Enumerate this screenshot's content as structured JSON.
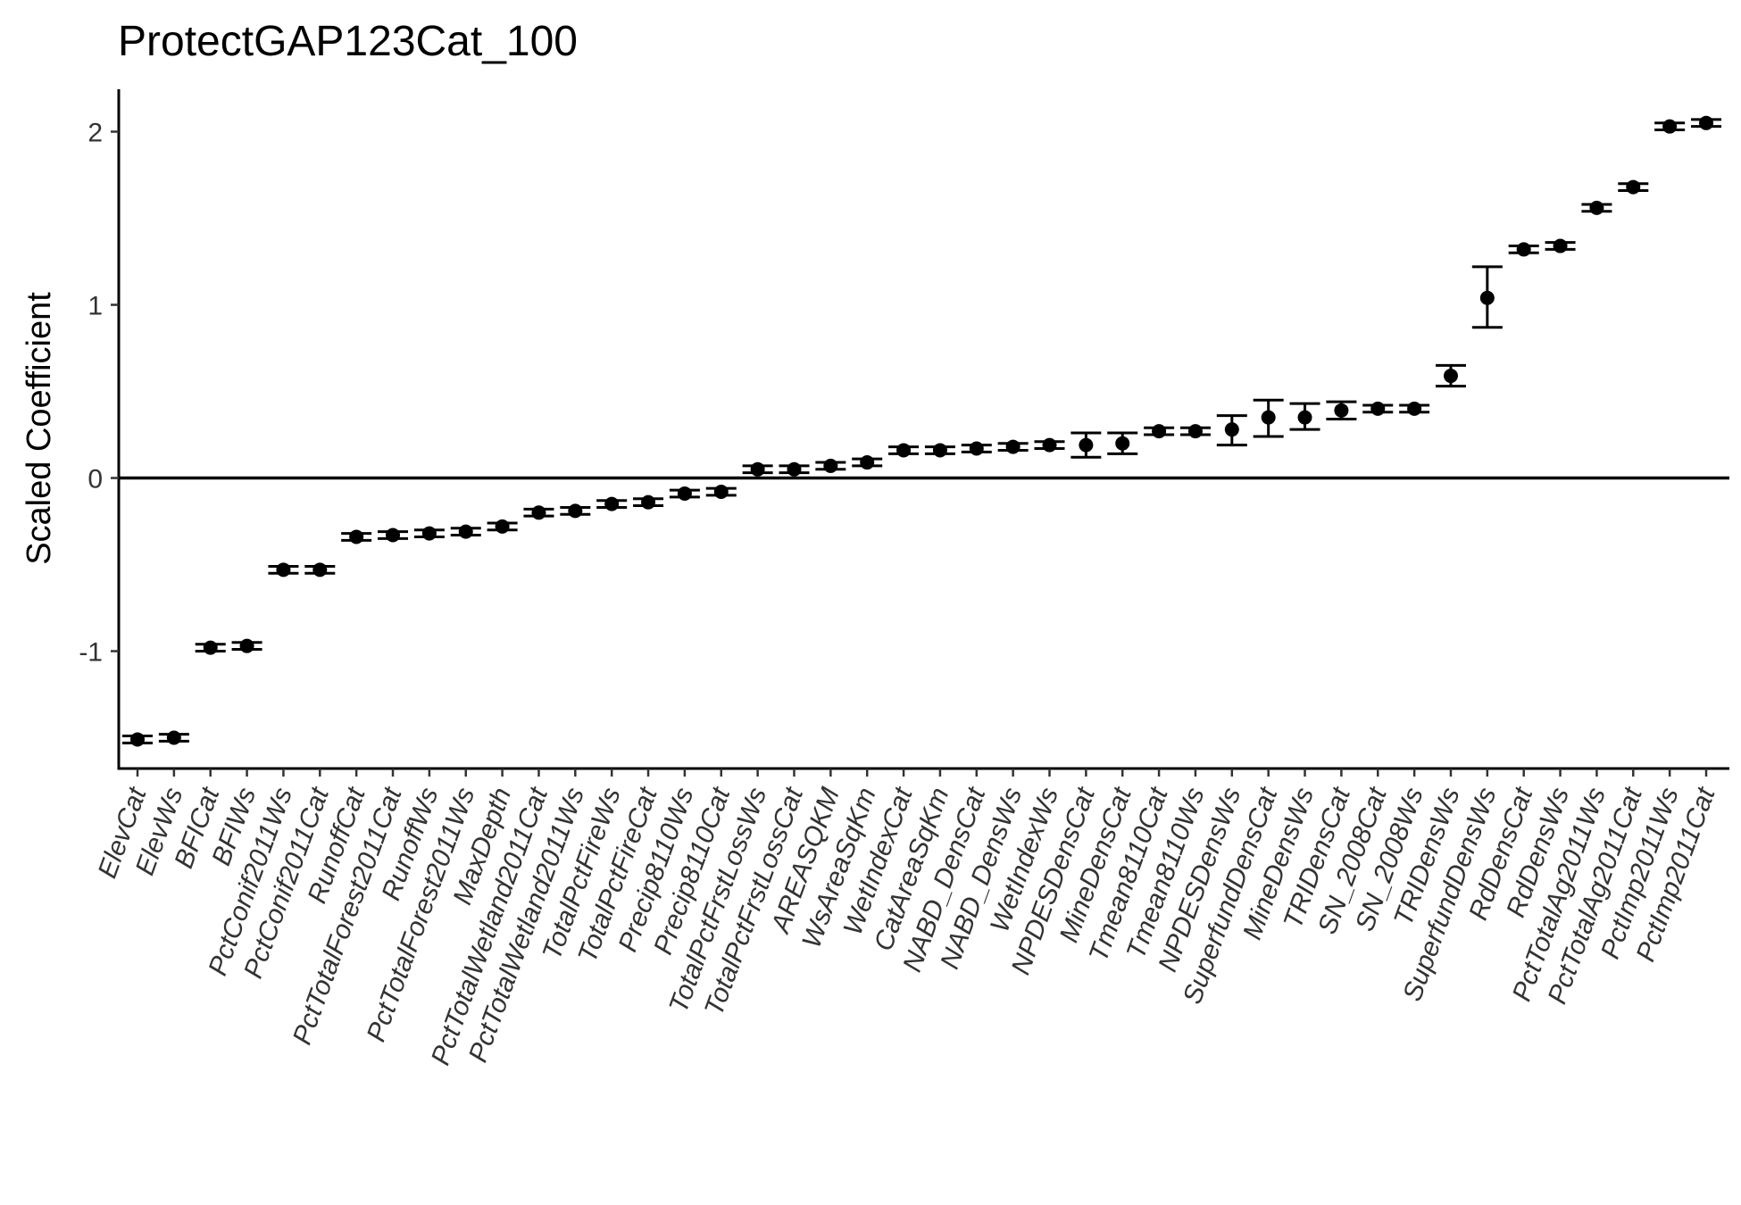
{
  "chart_data": {
    "type": "scatter",
    "title": "ProtectGAP123Cat_100",
    "xlabel": "",
    "ylabel": "Scaled Coefficient",
    "ylim": [
      -1.68,
      2.25
    ],
    "yticks": [
      -1,
      0,
      1,
      2
    ],
    "ytick_labels": [
      "-1",
      "0",
      "1",
      "2"
    ],
    "reference_line_y": 0,
    "grid": false,
    "legend": "none",
    "point_color": "#000000",
    "categories": [
      "ElevCat",
      "ElevWs",
      "BFICat",
      "BFIWs",
      "PctConif2011Ws",
      "PctConif2011Cat",
      "RunoffCat",
      "PctTotalForest2011Cat",
      "RunoffWs",
      "PctTotalForest2011Ws",
      "MaxDepth",
      "PctTotalWetland2011Cat",
      "PctTotalWetland2011Ws",
      "TotalPctFireWs",
      "TotalPctFireCat",
      "Precip8110Ws",
      "Precip8110Cat",
      "TotalPctFrstLossWs",
      "TotalPctFrstLossCat",
      "AREASQKM",
      "WsAreaSqKm",
      "WetIndexCat",
      "CatAreaSqKm",
      "NABD_DensCat",
      "NABD_DensWs",
      "WetIndexWs",
      "NPDESDensCat",
      "MineDensCat",
      "Tmean8110Cat",
      "Tmean8110Ws",
      "NPDESDensWs",
      "SuperfundDensCat",
      "MineDensWs",
      "TRIDensCat",
      "SN_2008Cat",
      "SN_2008Ws",
      "TRIDensWs",
      "SuperfundDensWs",
      "RdDensCat",
      "RdDensWs",
      "PctTotalAg2011Ws",
      "PctTotalAg2011Cat",
      "PctImp2011Ws",
      "PctImp2011Cat"
    ],
    "values": [
      -1.51,
      -1.5,
      -0.98,
      -0.97,
      -0.53,
      -0.53,
      -0.34,
      -0.33,
      -0.32,
      -0.31,
      -0.28,
      -0.2,
      -0.19,
      -0.15,
      -0.14,
      -0.09,
      -0.08,
      0.05,
      0.05,
      0.07,
      0.09,
      0.16,
      0.16,
      0.17,
      0.18,
      0.19,
      0.19,
      0.2,
      0.27,
      0.27,
      0.28,
      0.35,
      0.35,
      0.39,
      0.4,
      0.4,
      0.59,
      1.04,
      1.32,
      1.34,
      1.56,
      1.68,
      2.03,
      2.05
    ],
    "lower": [
      -1.53,
      -1.52,
      -1.0,
      -0.99,
      -0.55,
      -0.55,
      -0.36,
      -0.35,
      -0.34,
      -0.33,
      -0.3,
      -0.22,
      -0.21,
      -0.17,
      -0.16,
      -0.11,
      -0.1,
      0.03,
      0.03,
      0.05,
      0.07,
      0.14,
      0.14,
      0.15,
      0.16,
      0.17,
      0.12,
      0.14,
      0.25,
      0.25,
      0.19,
      0.24,
      0.28,
      0.34,
      0.38,
      0.38,
      0.53,
      0.87,
      1.3,
      1.32,
      1.54,
      1.66,
      2.01,
      2.03
    ],
    "upper": [
      -1.49,
      -1.48,
      -0.96,
      -0.95,
      -0.51,
      -0.51,
      -0.32,
      -0.31,
      -0.3,
      -0.29,
      -0.26,
      -0.18,
      -0.17,
      -0.13,
      -0.12,
      -0.07,
      -0.06,
      0.07,
      0.07,
      0.09,
      0.11,
      0.18,
      0.18,
      0.19,
      0.2,
      0.21,
      0.26,
      0.26,
      0.29,
      0.29,
      0.36,
      0.45,
      0.43,
      0.44,
      0.42,
      0.42,
      0.65,
      1.22,
      1.34,
      1.36,
      1.58,
      1.7,
      2.05,
      2.07
    ]
  }
}
